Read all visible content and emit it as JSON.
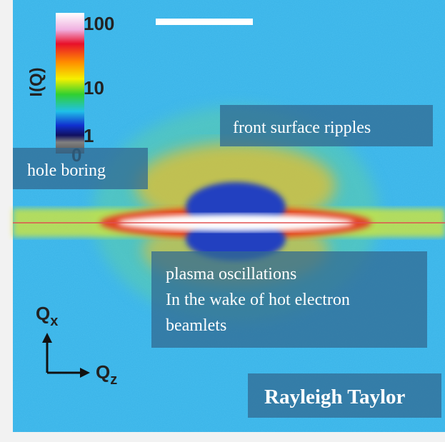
{
  "colorbar": {
    "label": "I(Q)",
    "ticks": [
      "100",
      "10",
      "1",
      "0"
    ]
  },
  "annotations": {
    "front": "front surface ripples",
    "hole": "hole boring",
    "plasma": [
      "plasma oscillations",
      "In the wake of hot electron",
      "beamlets"
    ],
    "rayleigh": "Rayleigh Taylor"
  },
  "axes": {
    "qx": {
      "main": "Q",
      "sub": "x"
    },
    "qz": {
      "main": "Q",
      "sub": "z"
    }
  }
}
